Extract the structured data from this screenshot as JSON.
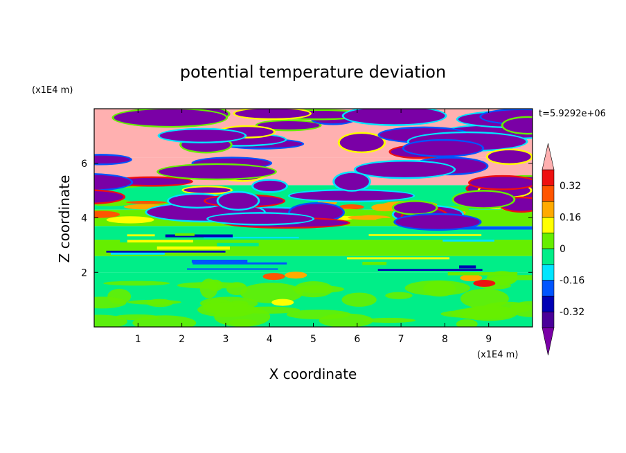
{
  "chart_data": {
    "type": "heatmap",
    "title": "potential temperature deviation",
    "xlabel": "X coordinate",
    "ylabel": "Z coordinate",
    "x_unit": "(x1E4 m)",
    "y_unit": "(x1E4 m)",
    "time_label": "t=5.9292e+06",
    "xlim": [
      0,
      10
    ],
    "ylim": [
      0,
      8
    ],
    "x_ticks": [
      1,
      2,
      3,
      4,
      5,
      6,
      7,
      8,
      9
    ],
    "y_ticks": [
      2,
      4,
      6
    ],
    "colorbar": {
      "levels": [
        -0.4,
        -0.32,
        -0.24,
        -0.16,
        -0.08,
        0,
        0.08,
        0.16,
        0.24,
        0.32,
        0.4
      ],
      "tick_labels": [
        "0.32",
        "0.16",
        "0",
        "-0.16",
        "-0.32"
      ],
      "tick_values": [
        0.32,
        0.16,
        0,
        -0.16,
        -0.32
      ],
      "colors": [
        "#7a00a6",
        "#4a0099",
        "#0000b4",
        "#0055ff",
        "#00e5ff",
        "#00ee88",
        "#66ee00",
        "#ffff00",
        "#ffaa00",
        "#ff5500",
        "#ee1111",
        "#ffb0b0"
      ],
      "extend": "both"
    },
    "grid": false
  }
}
